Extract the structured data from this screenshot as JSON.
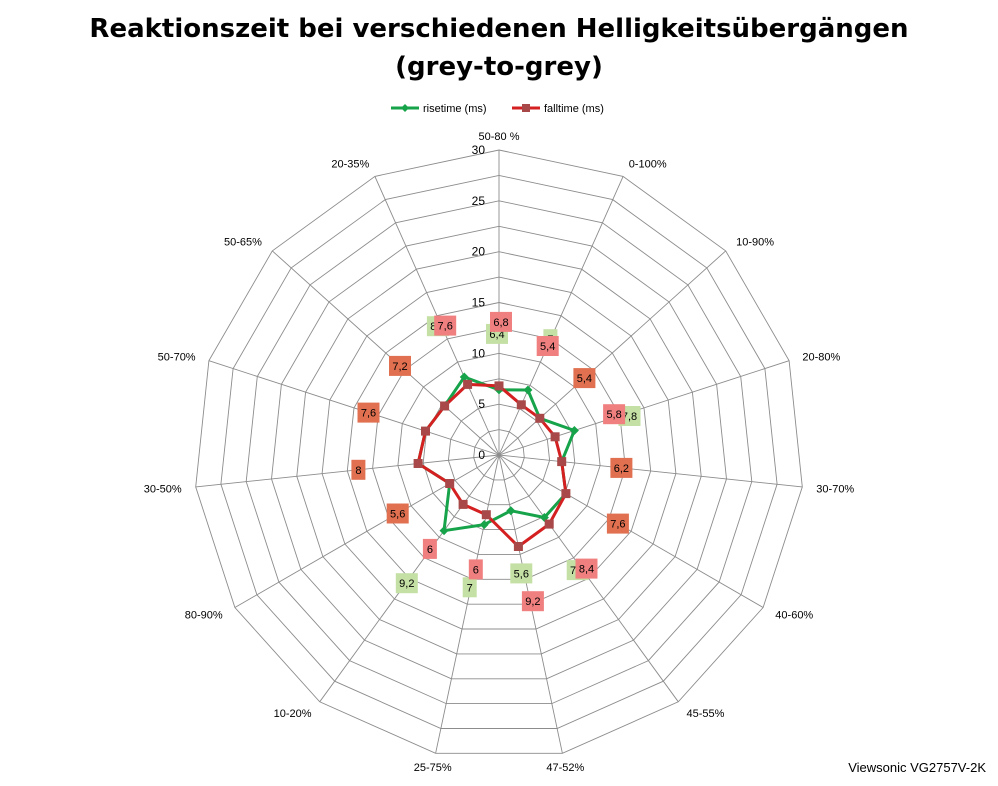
{
  "chart_data": {
    "type": "radar",
    "title_lines": [
      "Reaktionszeit bei verschiedenen Helligkeitsübergängen",
      "(grey-to-grey)"
    ],
    "categories": [
      "50-80 %",
      "0-100%",
      "10-90%",
      "20-80%",
      "30-70%",
      "40-60%",
      "45-55%",
      "47-52%",
      "25-75%",
      "10-20%",
      "80-90%",
      "30-50%",
      "50-70%",
      "50-65%",
      "20-35%"
    ],
    "rlim": [
      0,
      30
    ],
    "rticks": [
      0,
      5,
      10,
      15,
      20,
      25,
      30
    ],
    "grid": true,
    "legend_position": "top",
    "series": [
      {
        "name": "risetime (ms)",
        "color": "#16A34A",
        "label_bg": "#C5E0A5",
        "values": [
          6.4,
          7,
          5.4,
          7.8,
          6.2,
          7.6,
          7.6,
          5.6,
          7,
          9.2,
          5.6,
          8,
          7.6,
          7.2,
          8.4
        ],
        "labels": [
          "6,4",
          "7",
          "5,4",
          "7,8",
          "6,2",
          "7,6",
          "7,6",
          "5,6",
          "7",
          "9,2",
          "5,6",
          "8",
          "7,6",
          "7,2",
          "8,4"
        ]
      },
      {
        "name": "falltime (ms)",
        "color": "#D42020",
        "label_bg": "#F08080",
        "values": [
          6.8,
          5.4,
          5.4,
          5.8,
          6.2,
          7.6,
          8.4,
          9.2,
          6,
          6,
          5.6,
          8,
          7.6,
          7.2,
          7.6
        ],
        "labels": [
          "6,8",
          "5,4",
          "5,4",
          "5,8",
          "6,2",
          "7,6",
          "8,4",
          "9,2",
          "6",
          "6",
          "5,6",
          "8",
          "7,6",
          "7,2",
          "7,6"
        ]
      }
    ],
    "overlap_label_bg": "#E07050"
  },
  "watermark": "Viewsonic VG2757V-2K"
}
